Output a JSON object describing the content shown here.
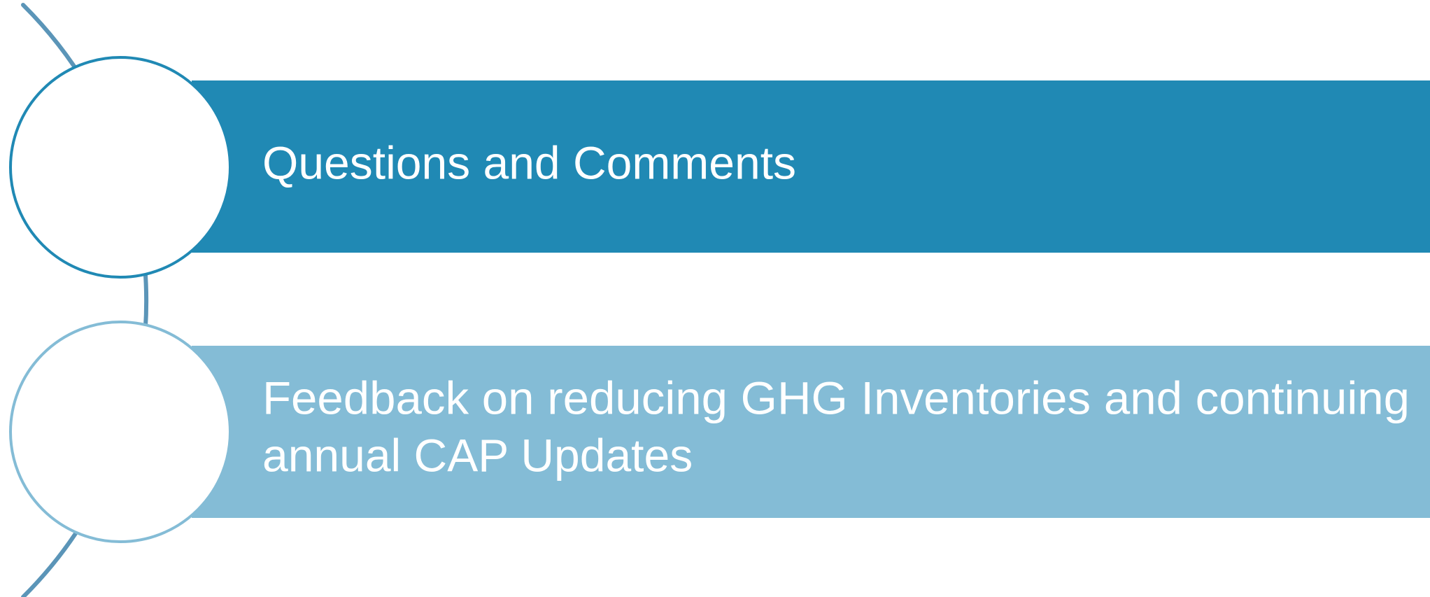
{
  "items": [
    {
      "lines": [
        "Questions and Comments"
      ]
    },
    {
      "lines": [
        "Feedback on reducing GHG Inventories and continuing",
        "annual CAP Updates"
      ]
    }
  ]
}
